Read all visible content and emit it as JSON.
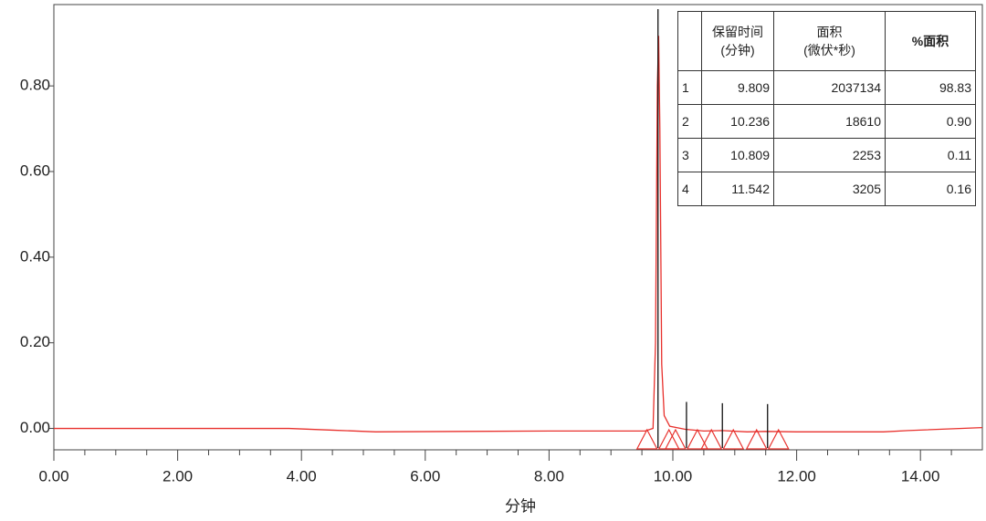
{
  "chart_data": {
    "type": "line",
    "x_label": "分钟",
    "xlim": [
      0,
      15
    ],
    "xticks": [
      {
        "value": 0,
        "label": "0.00"
      },
      {
        "value": 2,
        "label": "2.00"
      },
      {
        "value": 4,
        "label": "4.00"
      },
      {
        "value": 6,
        "label": "6.00"
      },
      {
        "value": 8,
        "label": "8.00"
      },
      {
        "value": 10,
        "label": "10.00"
      },
      {
        "value": 12,
        "label": "12.00"
      },
      {
        "value": 14,
        "label": "14.00"
      }
    ],
    "xminorticks": [
      0.5,
      1,
      1.5,
      2.5,
      3,
      3.5,
      4.5,
      5,
      5.5,
      6.5,
      7,
      7.5,
      8.5,
      9,
      9.5,
      10.5,
      11,
      11.5,
      12.5,
      13,
      13.5,
      14.5
    ],
    "ylim": [
      -0.05,
      0.99
    ],
    "yticks": [
      {
        "value": 0,
        "label": "0.00"
      },
      {
        "value": 0.2,
        "label": "0.20"
      },
      {
        "value": 0.4,
        "label": "0.40"
      },
      {
        "value": 0.6,
        "label": "0.60"
      },
      {
        "value": 0.8,
        "label": "0.80"
      }
    ],
    "series": [
      {
        "color": "#e8302c",
        "x": [
          0,
          3.8,
          4.5,
          5.2,
          8,
          9.55,
          9.68,
          9.72,
          9.75,
          9.77,
          9.79,
          9.82,
          9.86,
          9.95,
          10.2,
          10.5,
          10.8,
          11.2,
          11.5,
          12,
          13.4,
          13.8,
          15
        ],
        "values": [
          0,
          0,
          -0.004,
          -0.008,
          -0.006,
          -0.006,
          0.0,
          0.2,
          0.8,
          0.917,
          0.7,
          0.15,
          0.03,
          0.005,
          -0.002,
          -0.006,
          -0.005,
          -0.008,
          -0.007,
          -0.008,
          -0.008,
          -0.005,
          0.002
        ]
      }
    ],
    "table": {
      "headers": [
        [
          "保留时间",
          "(分钟)"
        ],
        [
          "面积",
          "(微伏*秒)"
        ],
        [
          "%面积"
        ]
      ],
      "rows": [
        [
          "1",
          "9.809",
          "2037134",
          "98.83"
        ],
        [
          "2",
          "10.236",
          "18610",
          "0.90"
        ],
        [
          "3",
          "10.809",
          "2253",
          "0.11"
        ],
        [
          "4",
          "11.542",
          "3205",
          "0.16"
        ]
      ]
    },
    "peaks": [
      9.76,
      10.22,
      10.8,
      11.53
    ]
  }
}
